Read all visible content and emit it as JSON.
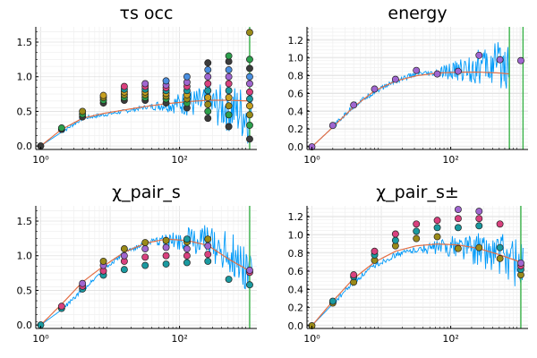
{
  "chart_data": [
    {
      "type": "line",
      "title": "τs occ",
      "xscale": "log10",
      "xlim": [
        0.85,
        1300
      ],
      "ylim": [
        -0.05,
        1.72
      ],
      "xtick_labels": [
        "10⁰",
        "10²"
      ],
      "ytick_labels": [
        "0.0",
        "0.5",
        "1.0",
        "1.5"
      ],
      "yticks": [
        0.0,
        0.5,
        1.0,
        1.5
      ],
      "grid": true,
      "legend": "none",
      "vline": {
        "x": 1024,
        "color": "#3cb44b"
      },
      "fit_curve": {
        "color": "#e26f46",
        "x": [
          1,
          2,
          4,
          8,
          16,
          32,
          64,
          128,
          256,
          512,
          1024
        ],
        "y": [
          0.0,
          0.24,
          0.4,
          0.47,
          0.52,
          0.57,
          0.61,
          0.64,
          0.66,
          0.66,
          0.65
        ]
      },
      "noisy_series": {
        "color": "#009af9",
        "x": [
          1,
          2,
          4,
          8,
          16,
          32,
          64,
          128,
          256,
          512,
          1024
        ],
        "y": [
          0.0,
          0.2,
          0.4,
          0.45,
          0.5,
          0.56,
          0.6,
          0.62,
          0.6,
          0.55,
          0.45
        ],
        "noise_from_x": 40,
        "noise_amp": [
          0.05,
          0.45
        ]
      },
      "scatter_colors": [
        "#3c3c3c",
        "#2ca04c",
        "#9a8a18",
        "#c8a020",
        "#1a9aa0",
        "#d9417e",
        "#a066d0",
        "#4a8fe0"
      ],
      "scatter": [
        {
          "x": 1,
          "y": [
            0.0
          ]
        },
        {
          "x": 2,
          "y": [
            0.24,
            0.26
          ]
        },
        {
          "x": 4,
          "y": [
            0.42,
            0.46,
            0.5
          ]
        },
        {
          "x": 8,
          "y": [
            0.62,
            0.66,
            0.7,
            0.73
          ]
        },
        {
          "x": 16,
          "y": [
            0.66,
            0.7,
            0.74,
            0.78,
            0.82,
            0.86
          ]
        },
        {
          "x": 32,
          "y": [
            0.66,
            0.7,
            0.74,
            0.78,
            0.82,
            0.86,
            0.9
          ]
        },
        {
          "x": 64,
          "y": [
            0.62,
            0.68,
            0.72,
            0.76,
            0.8,
            0.84,
            0.88,
            0.94
          ]
        },
        {
          "x": 128,
          "y": [
            0.55,
            0.62,
            0.68,
            0.74,
            0.8,
            0.86,
            0.92,
            1.0
          ]
        },
        {
          "x": 256,
          "y": [
            0.4,
            0.5,
            0.6,
            0.7,
            0.8,
            0.9,
            1.0,
            1.1,
            1.2
          ]
        },
        {
          "x": 512,
          "y": [
            0.28,
            0.45,
            0.58,
            0.7,
            0.8,
            0.9,
            1.0,
            1.1,
            1.22,
            1.3
          ]
        },
        {
          "x": 1024,
          "y": [
            0.1,
            0.3,
            0.45,
            0.58,
            0.68,
            0.78,
            0.9,
            1.0,
            1.12,
            1.25,
            1.64
          ]
        }
      ]
    },
    {
      "type": "line",
      "title": "energy",
      "xscale": "log10",
      "xlim": [
        0.85,
        1300
      ],
      "ylim": [
        -0.03,
        1.35
      ],
      "xtick_labels": [
        "10⁰",
        "10²"
      ],
      "ytick_labels": [
        "0.0",
        "0.2",
        "0.4",
        "0.6",
        "0.8",
        "1.0",
        "1.2"
      ],
      "yticks": [
        0.0,
        0.2,
        0.4,
        0.6,
        0.8,
        1.0,
        1.2
      ],
      "grid": true,
      "legend": "none",
      "vlines": [
        {
          "x": 700,
          "color": "#3cb44b"
        },
        {
          "x": 1100,
          "color": "#3cb44b"
        }
      ],
      "fit_curve": {
        "color": "#e26f46",
        "x": [
          1,
          2,
          4,
          8,
          16,
          32,
          64,
          128,
          256,
          512,
          700
        ],
        "y": [
          0.0,
          0.22,
          0.45,
          0.63,
          0.74,
          0.8,
          0.83,
          0.84,
          0.84,
          0.83,
          0.82
        ]
      },
      "noisy_series": {
        "color": "#009af9",
        "x": [
          1,
          2,
          4,
          8,
          16,
          32,
          64,
          128,
          256,
          512,
          700
        ],
        "y": [
          0.0,
          0.22,
          0.46,
          0.62,
          0.74,
          0.82,
          0.82,
          0.86,
          0.9,
          0.92,
          0.95
        ],
        "noise_from_x": 60,
        "noise_amp": [
          0.05,
          0.3
        ]
      },
      "scatter_colors": [
        "#a066d0"
      ],
      "scatter": [
        {
          "x": 1,
          "y": [
            0.0
          ]
        },
        {
          "x": 2,
          "y": [
            0.24
          ]
        },
        {
          "x": 4,
          "y": [
            0.47
          ]
        },
        {
          "x": 8,
          "y": [
            0.65
          ]
        },
        {
          "x": 16,
          "y": [
            0.76
          ]
        },
        {
          "x": 32,
          "y": [
            0.86
          ]
        },
        {
          "x": 64,
          "y": [
            0.82
          ]
        },
        {
          "x": 128,
          "y": [
            0.85
          ]
        },
        {
          "x": 256,
          "y": [
            1.03
          ]
        },
        {
          "x": 512,
          "y": [
            0.98
          ]
        },
        {
          "x": 1024,
          "y": [
            0.97
          ]
        }
      ]
    },
    {
      "type": "line",
      "title": "χ_pair_s",
      "xscale": "log10",
      "xlim": [
        0.85,
        1300
      ],
      "ylim": [
        -0.05,
        1.72
      ],
      "xtick_labels": [
        "10⁰",
        "10²"
      ],
      "ytick_labels": [
        "0.0",
        "0.5",
        "1.0",
        "1.5"
      ],
      "yticks": [
        0.0,
        0.5,
        1.0,
        1.5
      ],
      "grid": true,
      "legend": "none",
      "vline": {
        "x": 1024,
        "color": "#3cb44b"
      },
      "fit_curve": {
        "color": "#e26f46",
        "x": [
          1,
          2,
          4,
          8,
          16,
          32,
          64,
          128,
          256,
          512,
          1024
        ],
        "y": [
          0.0,
          0.3,
          0.62,
          0.85,
          1.05,
          1.18,
          1.24,
          1.22,
          1.15,
          0.95,
          0.78
        ]
      },
      "noisy_series": {
        "color": "#009af9",
        "x": [
          1,
          2,
          4,
          8,
          16,
          32,
          64,
          128,
          256,
          512,
          1024
        ],
        "y": [
          0.0,
          0.22,
          0.5,
          0.8,
          1.04,
          1.18,
          1.22,
          1.24,
          1.2,
          1.05,
          0.8
        ],
        "noise_from_x": 40,
        "noise_amp": [
          0.05,
          0.4
        ]
      },
      "scatter_colors": [
        "#1a9aa0",
        "#d9417e",
        "#a066d0",
        "#9a8a18"
      ],
      "scatter": [
        {
          "x": 1,
          "y": [
            0.0
          ]
        },
        {
          "x": 2,
          "y": [
            0.24,
            0.27
          ]
        },
        {
          "x": 4,
          "y": [
            0.52,
            0.56,
            0.6
          ]
        },
        {
          "x": 8,
          "y": [
            0.72,
            0.78,
            0.86,
            0.92
          ]
        },
        {
          "x": 16,
          "y": [
            0.8,
            0.92,
            1.0,
            1.1
          ]
        },
        {
          "x": 32,
          "y": [
            0.86,
            0.98,
            1.1,
            1.19
          ]
        },
        {
          "x": 64,
          "y": [
            0.88,
            1.0,
            1.12,
            1.22
          ]
        },
        {
          "x": 128,
          "y": [
            0.9,
            1.0,
            1.1,
            1.2,
            1.24
          ]
        },
        {
          "x": 256,
          "y": [
            0.92,
            1.02,
            1.14,
            1.24
          ]
        },
        {
          "x": 512,
          "y": [
            0.66
          ]
        },
        {
          "x": 1024,
          "y": [
            0.58,
            0.76,
            0.79
          ]
        }
      ]
    },
    {
      "type": "line",
      "title": "χ_pair_s±",
      "xscale": "log10",
      "xlim": [
        0.85,
        1300
      ],
      "ylim": [
        -0.03,
        1.32
      ],
      "xtick_labels": [
        "10⁰",
        "10²"
      ],
      "ytick_labels": [
        "0.0",
        "0.2",
        "0.4",
        "0.6",
        "0.8",
        "1.0",
        "1.2"
      ],
      "yticks": [
        0.0,
        0.2,
        0.4,
        0.6,
        0.8,
        1.0,
        1.2
      ],
      "grid": true,
      "legend": "none",
      "vline": {
        "x": 1024,
        "color": "#3cb44b"
      },
      "fit_curve": {
        "color": "#e26f46",
        "x": [
          1,
          2,
          4,
          8,
          16,
          32,
          64,
          128,
          256,
          512,
          1024
        ],
        "y": [
          0.0,
          0.27,
          0.52,
          0.7,
          0.82,
          0.88,
          0.9,
          0.89,
          0.85,
          0.78,
          0.7
        ]
      },
      "noisy_series": {
        "color": "#009af9",
        "x": [
          1,
          2,
          4,
          8,
          16,
          32,
          64,
          128,
          256,
          512,
          1024
        ],
        "y": [
          0.0,
          0.24,
          0.48,
          0.66,
          0.78,
          0.84,
          0.86,
          0.88,
          0.84,
          0.78,
          0.66
        ],
        "noise_from_x": 40,
        "noise_amp": [
          0.05,
          0.3
        ]
      },
      "scatter_colors": [
        "#9a8a18",
        "#1a9aa0",
        "#d9417e",
        "#a066d0"
      ],
      "scatter": [
        {
          "x": 1,
          "y": [
            0.0
          ]
        },
        {
          "x": 2,
          "y": [
            0.25,
            0.27
          ]
        },
        {
          "x": 4,
          "y": [
            0.48,
            0.54,
            0.56
          ]
        },
        {
          "x": 8,
          "y": [
            0.72,
            0.78,
            0.82
          ]
        },
        {
          "x": 16,
          "y": [
            0.88,
            0.94,
            1.01
          ]
        },
        {
          "x": 32,
          "y": [
            0.96,
            1.04,
            1.12
          ]
        },
        {
          "x": 64,
          "y": [
            0.98,
            1.08,
            1.16
          ]
        },
        {
          "x": 128,
          "y": [
            0.85,
            1.08,
            1.18,
            1.28
          ]
        },
        {
          "x": 256,
          "y": [
            0.86,
            1.1,
            1.18,
            1.26
          ]
        },
        {
          "x": 512,
          "y": [
            0.74,
            0.86,
            1.12
          ]
        },
        {
          "x": 1024,
          "y": [
            0.56,
            0.62,
            0.66,
            0.69
          ]
        }
      ]
    }
  ]
}
